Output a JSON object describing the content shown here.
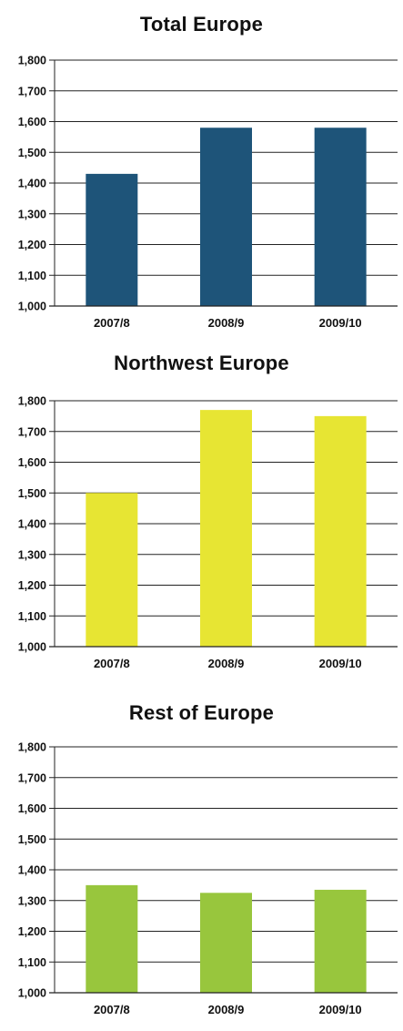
{
  "chart_data": [
    {
      "type": "bar",
      "title": "Total Europe",
      "categories": [
        "2007/8",
        "2008/9",
        "2009/10"
      ],
      "values": [
        1430,
        1580,
        1580
      ],
      "ylim": [
        1000,
        1800
      ],
      "yticks": [
        "1,000",
        "1,100",
        "1,200",
        "1,300",
        "1,400",
        "1,500",
        "1,600",
        "1,700",
        "1,800"
      ],
      "color": "#1e5479",
      "grid": true
    },
    {
      "type": "bar",
      "title": "Northwest Europe",
      "categories": [
        "2007/8",
        "2008/9",
        "2009/10"
      ],
      "values": [
        1500,
        1770,
        1750
      ],
      "ylim": [
        1000,
        1800
      ],
      "yticks": [
        "1,000",
        "1,100",
        "1,200",
        "1,300",
        "1,400",
        "1,500",
        "1,600",
        "1,700",
        "1,800"
      ],
      "color": "#e7e533",
      "grid": true
    },
    {
      "type": "bar",
      "title": "Rest of Europe",
      "categories": [
        "2007/8",
        "2008/9",
        "2009/10"
      ],
      "values": [
        1350,
        1325,
        1335
      ],
      "ylim": [
        1000,
        1800
      ],
      "yticks": [
        "1,000",
        "1,100",
        "1,200",
        "1,300",
        "1,400",
        "1,500",
        "1,600",
        "1,700",
        "1,800"
      ],
      "color": "#98c63d",
      "grid": true
    }
  ]
}
